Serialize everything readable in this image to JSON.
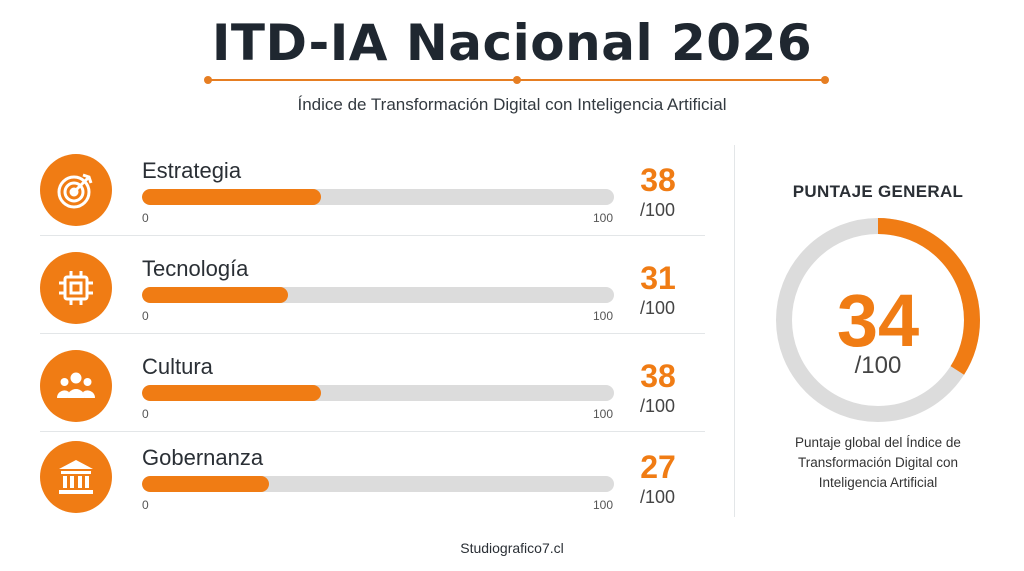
{
  "header": {
    "title": "ITD-IA Nacional 2026",
    "subtitle": "Índice de Transformación Digital con Inteligencia Artificial"
  },
  "chart_data": [
    {
      "type": "bar",
      "orientation": "horizontal",
      "categories": [
        "Estrategia",
        "Tecnología",
        "Cultura",
        "Gobernanza"
      ],
      "icons": [
        "target-icon",
        "chip-icon",
        "people-icon",
        "government-building-icon"
      ],
      "values": [
        38,
        31,
        38,
        27
      ],
      "value_suffix": "/100",
      "xlim": [
        0,
        100
      ],
      "tick_labels": [
        "0",
        "100"
      ],
      "grid": false,
      "colors": {
        "fill": "#f07c14",
        "track": "#dcdcdc"
      }
    },
    {
      "type": "pie",
      "style": "donut-gauge",
      "title": "PUNTAJE GENERAL",
      "value": 34,
      "max": 100,
      "value_suffix": "/100",
      "caption": "Puntaje global del Índice de Transformación Digital con Inteligencia Artificial",
      "colors": {
        "fill": "#f07c14",
        "track": "#dcdcdc"
      }
    }
  ],
  "footer": {
    "text": "Studiografico7.cl"
  }
}
